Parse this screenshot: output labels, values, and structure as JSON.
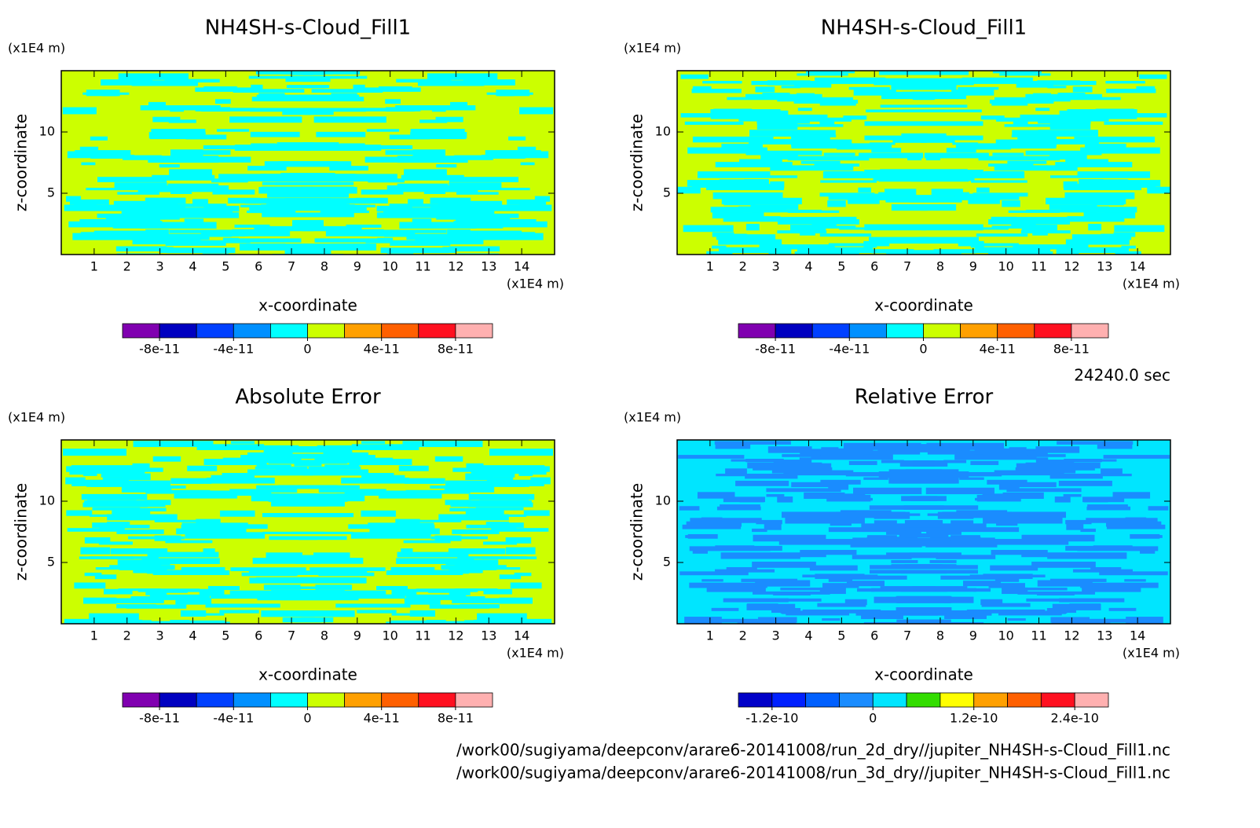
{
  "chart_data": [
    {
      "type": "contour",
      "title": "NH4SH-s-Cloud_Fill1",
      "x_label": "x-coordinate",
      "y_label": "z-coordinate",
      "x_unit": "(x1E4 m)",
      "y_unit": "(x1E4 m)",
      "xlim": [
        0,
        15
      ],
      "ylim": [
        0,
        15
      ],
      "xticks": [
        1,
        2,
        3,
        4,
        5,
        6,
        7,
        8,
        9,
        10,
        11,
        12,
        13,
        14
      ],
      "yticks": [
        5,
        10
      ],
      "field_colors": [
        "#ccff00",
        "#00ffff"
      ],
      "colorbar": {
        "clim": [
          -1e-10,
          1e-10
        ],
        "colors": [
          "#8000b0",
          "#0000c0",
          "#0040ff",
          "#0090ff",
          "#00ffff",
          "#ccff00",
          "#ffa000",
          "#ff6000",
          "#ff1020",
          "#ffb0b0"
        ],
        "ticks": [
          -8e-11,
          -4e-11,
          0,
          4e-11,
          8e-11
        ]
      }
    },
    {
      "type": "contour",
      "title": "NH4SH-s-Cloud_Fill1",
      "x_label": "x-coordinate",
      "y_label": "z-coordinate",
      "x_unit": "(x1E4 m)",
      "y_unit": "(x1E4 m)",
      "xlim": [
        0,
        15
      ],
      "ylim": [
        0,
        15
      ],
      "xticks": [
        1,
        2,
        3,
        4,
        5,
        6,
        7,
        8,
        9,
        10,
        11,
        12,
        13,
        14
      ],
      "yticks": [
        5,
        10
      ],
      "field_colors": [
        "#ccff00",
        "#00ffff"
      ],
      "colorbar": {
        "clim": [
          -1e-10,
          1e-10
        ],
        "colors": [
          "#8000b0",
          "#0000c0",
          "#0040ff",
          "#0090ff",
          "#00ffff",
          "#ccff00",
          "#ffa000",
          "#ff6000",
          "#ff1020",
          "#ffb0b0"
        ],
        "ticks": [
          -8e-11,
          -4e-11,
          0,
          4e-11,
          8e-11
        ]
      }
    },
    {
      "type": "contour",
      "title": "Absolute Error",
      "x_label": "x-coordinate",
      "y_label": "z-coordinate",
      "x_unit": "(x1E4 m)",
      "y_unit": "(x1E4 m)",
      "xlim": [
        0,
        15
      ],
      "ylim": [
        0,
        15
      ],
      "xticks": [
        1,
        2,
        3,
        4,
        5,
        6,
        7,
        8,
        9,
        10,
        11,
        12,
        13,
        14
      ],
      "yticks": [
        5,
        10
      ],
      "field_colors": [
        "#ccff00",
        "#00ffff"
      ],
      "colorbar": {
        "clim": [
          -1e-10,
          1e-10
        ],
        "colors": [
          "#8000b0",
          "#0000c0",
          "#0040ff",
          "#0090ff",
          "#00ffff",
          "#ccff00",
          "#ffa000",
          "#ff6000",
          "#ff1020",
          "#ffb0b0"
        ],
        "ticks": [
          -8e-11,
          -4e-11,
          0,
          4e-11,
          8e-11
        ]
      }
    },
    {
      "type": "contour",
      "title": "Relative Error",
      "x_label": "x-coordinate",
      "y_label": "z-coordinate",
      "x_unit": "(x1E4 m)",
      "y_unit": "(x1E4 m)",
      "xlim": [
        0,
        15
      ],
      "ylim": [
        0,
        15
      ],
      "xticks": [
        1,
        2,
        3,
        4,
        5,
        6,
        7,
        8,
        9,
        10,
        11,
        12,
        13,
        14
      ],
      "yticks": [
        5,
        10
      ],
      "field_colors": [
        "#00e5ff",
        "#1a8cff"
      ],
      "colorbar": {
        "clim": [
          -1.6e-10,
          2.8e-10
        ],
        "colors": [
          "#0000c8",
          "#0020ff",
          "#0060ff",
          "#1a8cff",
          "#00e5ff",
          "#33dd00",
          "#ffff00",
          "#ffa000",
          "#ff6000",
          "#ff1020",
          "#ffb0b0"
        ],
        "ticks": [
          -1.2e-10,
          0,
          1.2e-10,
          2.4e-10
        ]
      }
    }
  ],
  "annotations": {
    "time": "24240.0 sec",
    "files": [
      "/work00/sugiyama/deepconv/arare6-20141008/run_2d_dry//jupiter_NH4SH-s-Cloud_Fill1.nc",
      "/work00/sugiyama/deepconv/arare6-20141008/run_3d_dry//jupiter_NH4SH-s-Cloud_Fill1.nc"
    ]
  }
}
